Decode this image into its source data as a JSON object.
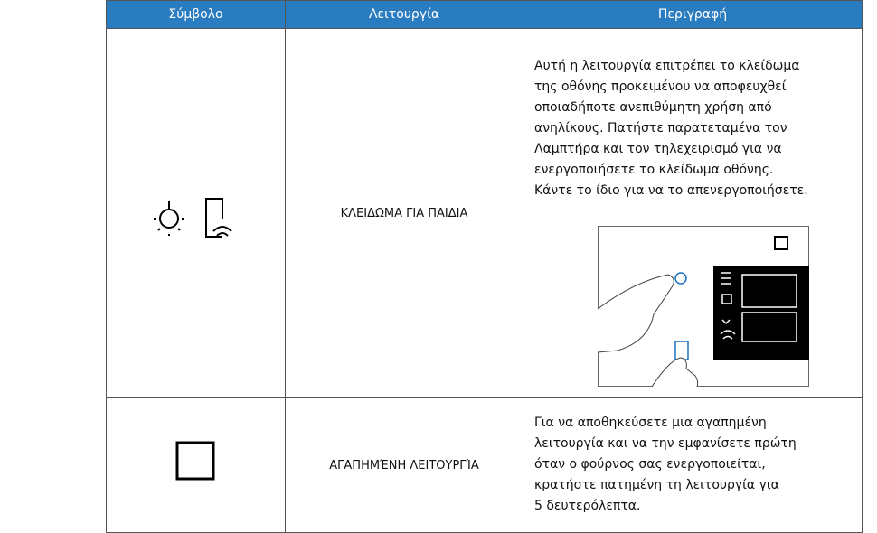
{
  "table": {
    "header": [
      "Σύμβολο",
      "Λειτουργία",
      "Περιγραφή"
    ],
    "rows": [
      {
        "function": "ΚΛΕΙΔΩΜΑ ΓΙΑ ΠΑΙΔΙΑ",
        "description": [
          "Αυτή η λειτουργία επιτρέπει το κλείδωμα",
          "της οθόνης προκειμένου να αποφευχθεί",
          "οποιαδήποτε ανεπιθύμητη χρήση από",
          "ανηλίκους. Πατήστε παρατεταμένα τον",
          "Λαμπτήρα και τον τηλεχειρισμό για να",
          "ενεργοποιήσετε το κλείδωμα οθόνης.",
          "Κάντε το ίδιο για να το απενεργοποιήσετε."
        ]
      },
      {
        "function": "ΑΓΑΠΗΜΈΝΗ ΛΕΙΤΟΥΡΓΊΑ",
        "description": [
          "Για να αποθηκεύσετε μια αγαπημένη",
          "λειτουργία και να την εμφανίσετε πρώτη",
          "όταν ο φούρνος σας ενεργοποιείται,",
          "κρατήστε πατημένη τη λειτουργία για",
          "5 δευτερόλεπτα."
        ]
      }
    ]
  }
}
